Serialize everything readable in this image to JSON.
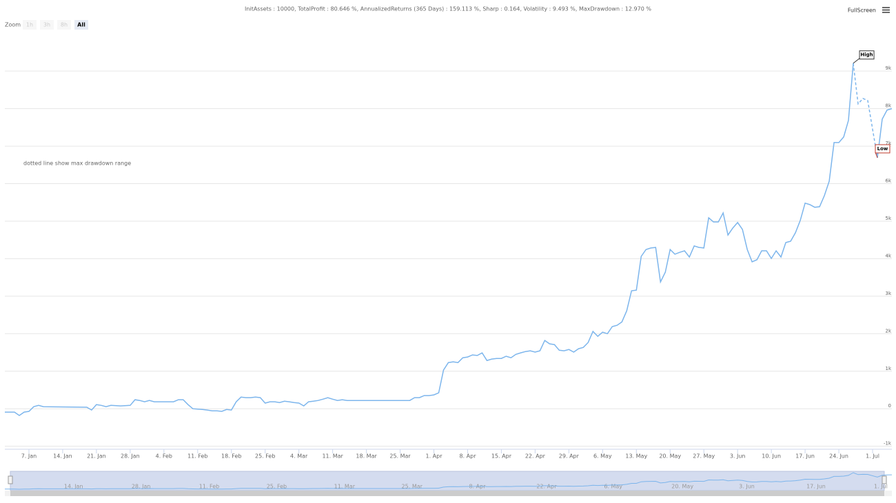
{
  "header": {
    "stats": "InitAssets : 10000, TotalProfit : 80.646 %, AnnualizedReturns (365 Days) : 159.113 %, Sharp : 0.164, Volatility : 9.493 %, MaxDrawdown : 12.970 %",
    "fullscreen": "FullScreen"
  },
  "zoom": {
    "label": "Zoom",
    "buttons": [
      "1h",
      "3h",
      "8h",
      "All"
    ]
  },
  "chart_data": {
    "type": "line",
    "annotation": "dotted line show max drawdown range",
    "high": {
      "label": "High",
      "x": "27. Jun"
    },
    "low": {
      "label": "Low",
      "x": "2. Jul"
    },
    "x": [
      "2. Jan",
      "4. Jan",
      "5. Jan",
      "6. Jan",
      "7. Jan",
      "8. Jan",
      "9. Jan",
      "10. Jan",
      "19. Jan",
      "20. Jan",
      "21. Jan",
      "22. Jan",
      "23. Jan",
      "24. Jan",
      "26. Jan",
      "28. Jan",
      "29. Jan",
      "30. Jan",
      "31. Jan",
      "1. Feb",
      "2. Feb",
      "6. Feb",
      "7. Feb",
      "8. Feb",
      "9. Feb",
      "10. Feb",
      "11. Feb",
      "12. Feb",
      "13. Feb",
      "14. Feb",
      "15. Feb",
      "16. Feb",
      "17. Feb",
      "18. Feb",
      "19. Feb",
      "20. Feb",
      "21. Feb",
      "22. Feb",
      "23. Feb",
      "24. Feb",
      "25. Feb",
      "26. Feb",
      "27. Feb",
      "28. Feb",
      "1. Mar",
      "2. Mar",
      "3. Mar",
      "4. Mar",
      "5. Mar",
      "6. Mar",
      "7. Mar",
      "8. Mar",
      "9. Mar",
      "10. Mar",
      "11. Mar",
      "12. Mar",
      "13. Mar",
      "14. Mar",
      "27. Mar",
      "28. Mar",
      "29. Mar",
      "30. Mar",
      "31. Mar",
      "1. Apr",
      "2. Apr",
      "3. Apr",
      "4. Apr",
      "5. Apr",
      "6. Apr",
      "7. Apr",
      "8. Apr",
      "9. Apr",
      "10. Apr",
      "11. Apr",
      "12. Apr",
      "13. Apr",
      "14. Apr",
      "15. Apr",
      "16. Apr",
      "17. Apr",
      "18. Apr",
      "19. Apr",
      "20. Apr",
      "21. Apr",
      "22. Apr",
      "23. Apr",
      "24. Apr",
      "25. Apr",
      "26. Apr",
      "27. Apr",
      "28. Apr",
      "29. Apr",
      "30. Apr",
      "1. May",
      "2. May",
      "3. May",
      "4. May",
      "5. May",
      "6. May",
      "7. May",
      "8. May",
      "9. May",
      "10. May",
      "11. May",
      "12. May",
      "13. May",
      "14. May",
      "15. May",
      "16. May",
      "17. May",
      "18. May",
      "19. May",
      "20. May",
      "21. May",
      "22. May",
      "23. May",
      "24. May",
      "25. May",
      "26. May",
      "27. May",
      "28. May",
      "29. May",
      "30. May",
      "31. May",
      "1. Jun",
      "2. Jun",
      "3. Jun",
      "4. Jun",
      "5. Jun",
      "6. Jun",
      "7. Jun",
      "8. Jun",
      "9. Jun",
      "10. Jun",
      "11. Jun",
      "12. Jun",
      "13. Jun",
      "14. Jun",
      "15. Jun",
      "16. Jun",
      "17. Jun",
      "18. Jun",
      "19. Jun",
      "20. Jun",
      "21. Jun",
      "22. Jun",
      "23. Jun",
      "24. Jun",
      "25. Jun",
      "26. Jun",
      "27. Jun",
      "28. Jun",
      "29. Jun",
      "30. Jun",
      "2. Jul",
      "3. Jul",
      "4. Jul",
      "5. Jul"
    ],
    "series": [
      {
        "color": "#7cb5ec",
        "values": [
          -90,
          -90,
          -180,
          -90,
          -70,
          55,
          90,
          55,
          40,
          -35,
          110,
          90,
          55,
          90,
          75,
          90,
          240,
          220,
          185,
          220,
          185,
          185,
          240,
          240,
          110,
          0,
          -10,
          -20,
          -35,
          -55,
          -55,
          -70,
          -20,
          -35,
          185,
          310,
          295,
          295,
          310,
          295,
          150,
          185,
          185,
          165,
          200,
          185,
          165,
          150,
          75,
          185,
          200,
          220,
          255,
          295,
          255,
          220,
          240,
          220,
          220,
          295,
          295,
          350,
          350,
          370,
          425,
          1030,
          1230,
          1250,
          1230,
          1360,
          1380,
          1435,
          1420,
          1490,
          1285,
          1325,
          1340,
          1340,
          1400,
          1360,
          1450,
          1490,
          1525,
          1545,
          1510,
          1545,
          1820,
          1730,
          1710,
          1560,
          1545,
          1580,
          1510,
          1600,
          1635,
          1765,
          2060,
          1930,
          2040,
          2000,
          2190,
          2225,
          2315,
          2610,
          3145,
          3160,
          4060,
          4245,
          4285,
          4300,
          3380,
          3640,
          4245,
          4120,
          4170,
          4210,
          4045,
          4340,
          4300,
          4285,
          5090,
          4980,
          4980,
          5220,
          4630,
          4815,
          4965,
          4780,
          4245,
          3915,
          3970,
          4210,
          4210,
          4005,
          4210,
          4045,
          4430,
          4465,
          4690,
          5020,
          5480,
          5440,
          5370,
          5385,
          5680,
          6065,
          7095,
          7095,
          7245,
          7685,
          9210,
          8125,
          8270,
          8215,
          6690,
          7720,
          7960,
          8000
        ]
      }
    ],
    "xlim": [
      "2. Jan",
      "5. Jul"
    ],
    "xticks": [
      "7. Jan",
      "14. Jan",
      "21. Jan",
      "28. Jan",
      "4. Feb",
      "11. Feb",
      "18. Feb",
      "25. Feb",
      "4. Mar",
      "11. Mar",
      "18. Mar",
      "25. Mar",
      "1. Apr",
      "8. Apr",
      "15. Apr",
      "22. Apr",
      "29. Apr",
      "6. May",
      "13. May",
      "20. May",
      "27. May",
      "3. Jun",
      "10. Jun",
      "17. Jun",
      "24. Jun",
      "1. Jul"
    ],
    "ylim": [
      -1080,
      9940
    ],
    "yticks": [
      {
        "value": -1000,
        "label": "-1k"
      },
      0,
      {
        "value": 1000,
        "label": "1k"
      },
      {
        "value": 2000,
        "label": "2k"
      },
      {
        "value": 3000,
        "label": "3k"
      },
      {
        "value": 4000,
        "label": "4k"
      },
      {
        "value": 5000,
        "label": "5k"
      },
      {
        "value": 6000,
        "label": "6k"
      },
      {
        "value": 7000,
        "label": "7k"
      },
      {
        "value": 8000,
        "label": "8k"
      },
      {
        "value": 9000,
        "label": "9k"
      }
    ],
    "grid": true
  }
}
